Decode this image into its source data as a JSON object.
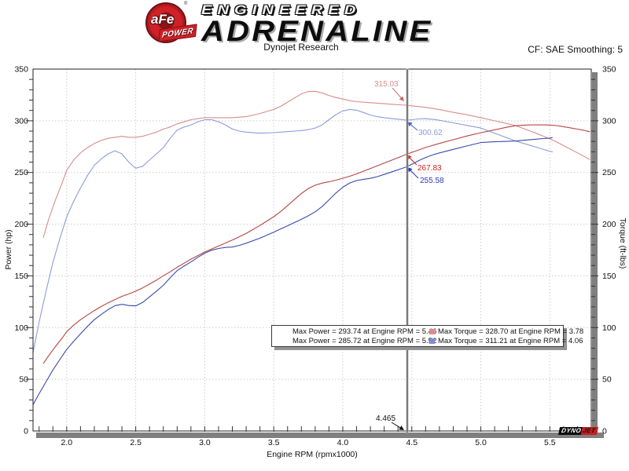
{
  "header": {
    "logo_afe": "aFe",
    "logo_power": "POWER",
    "logo_reg": "®",
    "brand_line1": "ENGINEERED",
    "brand_line2": "ADRENALINE",
    "subtitle": "Dynojet Research",
    "cf_label": "CF: SAE Smoothing: 5"
  },
  "footer_logo": {
    "part1": "DYNO",
    "part2": "JET"
  },
  "chart_data": {
    "type": "line",
    "title": "Dynojet Research",
    "xlabel": "Engine RPM (rpmx1000)",
    "ylabel_left": "Power (hp)",
    "ylabel_right": "Torque (ft-lbs)",
    "x_range": [
      1.756,
      5.8
    ],
    "y_range": [
      0,
      350
    ],
    "x_ticks": [
      {
        "v": 2.0,
        "t": "2.0"
      },
      {
        "v": 2.5,
        "t": "2.5"
      },
      {
        "v": 3.0,
        "t": "3.0"
      },
      {
        "v": 3.5,
        "t": "3.5"
      },
      {
        "v": 4.0,
        "t": "4.0"
      },
      {
        "v": 4.5,
        "t": "4.5"
      },
      {
        "v": 5.0,
        "t": "5.0"
      },
      {
        "v": 5.5,
        "t": "5.5"
      }
    ],
    "y_ticks": [
      0,
      50,
      100,
      150,
      200,
      250,
      300,
      350
    ],
    "x_minor_step": 0.1,
    "y_minor_step": 10,
    "grid_color": "#cccccc",
    "power_from_torque_factor": 5.252,
    "series": [
      {
        "id": "torque-red",
        "kind": "torque",
        "color": "#d98c8c",
        "points": [
          [
            1.83,
            187
          ],
          [
            1.87,
            205
          ],
          [
            1.92,
            224
          ],
          [
            1.97,
            241
          ],
          [
            2.0,
            252
          ],
          [
            2.05,
            262
          ],
          [
            2.1,
            269
          ],
          [
            2.15,
            274
          ],
          [
            2.2,
            278
          ],
          [
            2.25,
            281
          ],
          [
            2.3,
            283
          ],
          [
            2.35,
            284
          ],
          [
            2.4,
            285
          ],
          [
            2.45,
            284
          ],
          [
            2.5,
            284
          ],
          [
            2.55,
            285
          ],
          [
            2.6,
            287
          ],
          [
            2.65,
            289
          ],
          [
            2.7,
            292
          ],
          [
            2.75,
            294
          ],
          [
            2.8,
            297
          ],
          [
            2.85,
            299
          ],
          [
            2.9,
            301
          ],
          [
            2.95,
            302
          ],
          [
            3.0,
            303
          ],
          [
            3.1,
            303
          ],
          [
            3.2,
            303
          ],
          [
            3.3,
            304
          ],
          [
            3.4,
            307
          ],
          [
            3.45,
            309
          ],
          [
            3.5,
            311
          ],
          [
            3.55,
            314
          ],
          [
            3.6,
            318
          ],
          [
            3.65,
            322
          ],
          [
            3.7,
            326
          ],
          [
            3.75,
            328.3
          ],
          [
            3.8,
            328.5
          ],
          [
            3.85,
            327
          ],
          [
            3.9,
            324.5
          ],
          [
            3.95,
            322.5
          ],
          [
            4.0,
            321
          ],
          [
            4.05,
            319.5
          ],
          [
            4.1,
            318.5
          ],
          [
            4.2,
            317.5
          ],
          [
            4.3,
            316.5
          ],
          [
            4.4,
            315.5
          ],
          [
            4.465,
            315
          ],
          [
            4.5,
            314.5
          ],
          [
            4.6,
            313
          ],
          [
            4.7,
            310.8
          ],
          [
            4.8,
            308.2
          ],
          [
            4.9,
            305.8
          ],
          [
            5.0,
            303
          ],
          [
            5.1,
            300
          ],
          [
            5.2,
            297
          ],
          [
            5.25,
            295.3
          ],
          [
            5.3,
            293
          ],
          [
            5.35,
            290.5
          ],
          [
            5.4,
            288
          ],
          [
            5.45,
            285.3
          ],
          [
            5.5,
            282.5
          ],
          [
            5.55,
            279.5
          ],
          [
            5.6,
            276
          ],
          [
            5.65,
            272.5
          ],
          [
            5.7,
            269
          ],
          [
            5.75,
            265.5
          ],
          [
            5.79,
            262.5
          ]
        ]
      },
      {
        "id": "torque-blue",
        "kind": "torque",
        "color": "#8d9cd8",
        "points": [
          [
            1.755,
            75
          ],
          [
            1.8,
            105
          ],
          [
            1.85,
            135
          ],
          [
            1.9,
            163
          ],
          [
            1.95,
            186
          ],
          [
            2.0,
            207
          ],
          [
            2.05,
            222
          ],
          [
            2.1,
            235
          ],
          [
            2.15,
            247
          ],
          [
            2.2,
            257
          ],
          [
            2.25,
            263
          ],
          [
            2.3,
            268
          ],
          [
            2.35,
            271
          ],
          [
            2.4,
            268
          ],
          [
            2.45,
            260
          ],
          [
            2.5,
            254
          ],
          [
            2.55,
            256
          ],
          [
            2.6,
            262
          ],
          [
            2.65,
            268
          ],
          [
            2.7,
            274
          ],
          [
            2.75,
            283
          ],
          [
            2.8,
            291
          ],
          [
            2.85,
            294
          ],
          [
            2.9,
            296
          ],
          [
            2.95,
            299
          ],
          [
            3.0,
            301
          ],
          [
            3.05,
            301
          ],
          [
            3.1,
            299
          ],
          [
            3.15,
            296
          ],
          [
            3.2,
            292
          ],
          [
            3.25,
            290
          ],
          [
            3.3,
            289
          ],
          [
            3.4,
            288
          ],
          [
            3.5,
            288.5
          ],
          [
            3.6,
            289.5
          ],
          [
            3.7,
            290.5
          ],
          [
            3.75,
            291.5
          ],
          [
            3.8,
            293
          ],
          [
            3.85,
            296
          ],
          [
            3.9,
            301
          ],
          [
            3.95,
            306
          ],
          [
            4.0,
            309.5
          ],
          [
            4.05,
            311
          ],
          [
            4.1,
            310.2
          ],
          [
            4.15,
            308
          ],
          [
            4.2,
            305.5
          ],
          [
            4.25,
            304
          ],
          [
            4.3,
            303
          ],
          [
            4.4,
            301.5
          ],
          [
            4.465,
            300.6
          ],
          [
            4.5,
            301
          ],
          [
            4.55,
            301.8
          ],
          [
            4.6,
            302
          ],
          [
            4.65,
            301.5
          ],
          [
            4.7,
            300.5
          ],
          [
            4.8,
            298
          ],
          [
            4.9,
            295.5
          ],
          [
            5.0,
            293
          ],
          [
            5.05,
            290.5
          ],
          [
            5.1,
            288
          ],
          [
            5.15,
            285.5
          ],
          [
            5.2,
            283
          ],
          [
            5.25,
            280.5
          ],
          [
            5.3,
            278.5
          ],
          [
            5.4,
            274.5
          ],
          [
            5.45,
            272.5
          ],
          [
            5.5,
            270.5
          ],
          [
            5.52,
            270
          ]
        ]
      }
    ],
    "power_colors": {
      "torque-red": "#b84343",
      "torque-blue": "#3a4aa8"
    },
    "cursor": {
      "rpm": 4.465,
      "label": "4.465"
    },
    "callouts": [
      {
        "key": "torque-red-at-cursor",
        "text": "315.03",
        "color": "#d98c8c",
        "arrow_color": "#c96a6a",
        "label": [
          476,
          102
        ],
        "tail": [
          499,
          112
        ],
        "tip": [
          514,
          129
        ]
      },
      {
        "key": "torque-blue-at-cursor",
        "text": "300.62",
        "color": "#8d9cd8",
        "arrow_color": "#4a5fc4",
        "label": [
          532,
          164
        ],
        "tail": [
          531,
          166
        ],
        "tip": [
          518,
          155
        ]
      },
      {
        "key": "power-red-at-cursor",
        "text": "267.83",
        "color": "#cc2222",
        "arrow_color": "#cc2222",
        "label": [
          531,
          209
        ],
        "tail": [
          530,
          210
        ],
        "tip": [
          517,
          197
        ]
      },
      {
        "key": "power-blue-at-cursor",
        "text": "255.58",
        "color": "#2a3ac0",
        "arrow_color": "#2a3ac0",
        "label": [
          534,
          225
        ],
        "tail": [
          532,
          227
        ],
        "tip": [
          518,
          213
        ]
      },
      {
        "key": "cursor-rpm",
        "text": "4.465",
        "color": "#111111",
        "arrow_color": "#111111",
        "label": [
          478,
          528
        ],
        "tail": [
          498,
          538
        ],
        "tip": [
          514,
          548
        ]
      }
    ],
    "legend": [
      {
        "color": "#cc2222",
        "text": "Max Power = 293.74 at Engine RPM = 5.46"
      },
      {
        "color": "#2a35b8",
        "text": "Max Power = 285.72 at Engine RPM = 5.52"
      },
      {
        "color": "#e08a8a",
        "text": "Max Torque = 328.70 at Engine RPM = 3.78"
      },
      {
        "color": "#7d8fd6",
        "text": "Max Torque = 311.21 at Engine RPM = 4.06"
      }
    ]
  }
}
